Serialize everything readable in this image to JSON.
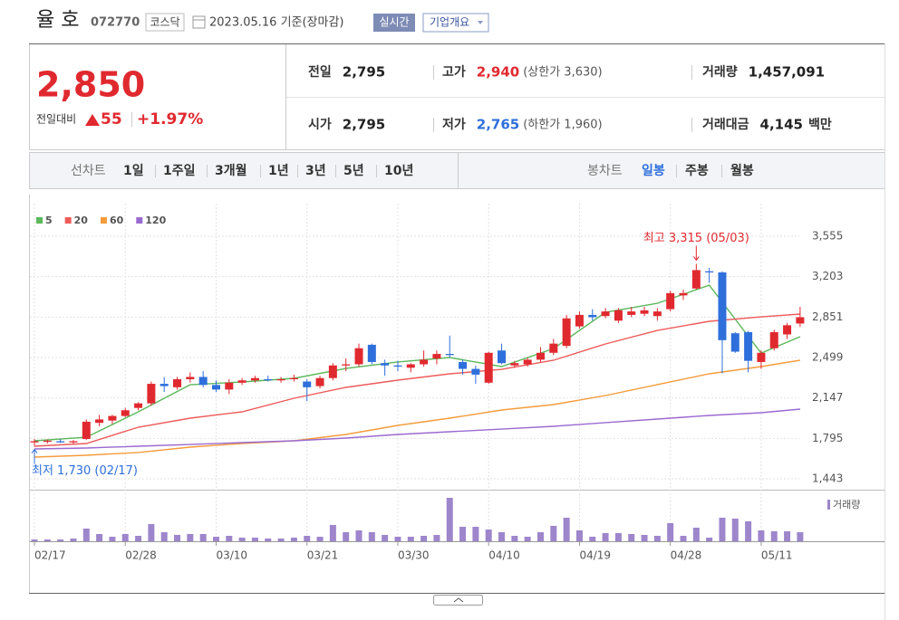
{
  "header": {
    "name": "율 호",
    "code": "072770",
    "market": "코스닥",
    "date": "2023.05.16 기준(장마감)",
    "realtime": "실시간",
    "company": "기업개요"
  },
  "quote": {
    "price": "2,850",
    "change_label": "전일대비",
    "change": "55",
    "change_pct": "+1.97%",
    "rows": [
      [
        {
          "label": "전일",
          "value": "2,795"
        },
        {
          "label": "고가",
          "value": "2,940",
          "note": "(상한가 3,630)"
        },
        {
          "label": "거래량",
          "value": "1,457,091"
        }
      ],
      [
        {
          "label": "시가",
          "value": "2,795"
        },
        {
          "label": "저가",
          "value": "2,765",
          "note": "(하한가 1,960)"
        },
        {
          "label": "거래대금",
          "value": "4,145",
          "unit": "백만"
        }
      ]
    ]
  },
  "tabs": {
    "line_label": "선차트",
    "line": [
      "1일",
      "1주일",
      "3개월",
      "1년",
      "3년",
      "5년",
      "10년"
    ],
    "candle_label": "봉차트",
    "candle": [
      "일봉",
      "주봉",
      "월봉"
    ],
    "active_candle": 0
  },
  "chart_data": {
    "type": "candlestick",
    "categories": [
      "02/17",
      null,
      null,
      null,
      null,
      null,
      null,
      "02/28",
      null,
      null,
      null,
      null,
      null,
      null,
      "03/10",
      null,
      null,
      null,
      null,
      null,
      null,
      "03/21",
      null,
      null,
      null,
      null,
      null,
      null,
      "03/30",
      null,
      null,
      null,
      null,
      null,
      null,
      "04/10",
      null,
      null,
      null,
      null,
      null,
      null,
      "04/19",
      null,
      null,
      null,
      null,
      null,
      null,
      "04/28",
      null,
      null,
      null,
      null,
      null,
      null,
      "05/11",
      null,
      null,
      null
    ],
    "candles": [
      [
        1760,
        1790,
        1730,
        1770
      ],
      [
        1765,
        1785,
        1750,
        1775
      ],
      [
        1770,
        1790,
        1755,
        1760
      ],
      [
        1760,
        1780,
        1750,
        1770
      ],
      [
        1790,
        1960,
        1780,
        1940
      ],
      [
        1930,
        2000,
        1900,
        1960
      ],
      [
        1950,
        2000,
        1920,
        1990
      ],
      [
        1990,
        2060,
        1980,
        2040
      ],
      [
        2060,
        2110,
        2040,
        2100
      ],
      [
        2100,
        2290,
        2080,
        2270
      ],
      [
        2270,
        2330,
        2200,
        2250
      ],
      [
        2240,
        2330,
        2220,
        2310
      ],
      [
        2310,
        2370,
        2280,
        2330
      ],
      [
        2330,
        2380,
        2240,
        2260
      ],
      [
        2260,
        2300,
        2200,
        2220
      ],
      [
        2220,
        2310,
        2180,
        2280
      ],
      [
        2280,
        2320,
        2260,
        2300
      ],
      [
        2300,
        2340,
        2280,
        2320
      ],
      [
        2310,
        2340,
        2290,
        2300
      ],
      [
        2300,
        2330,
        2280,
        2310
      ],
      [
        2310,
        2350,
        2290,
        2320
      ],
      [
        2290,
        2310,
        2120,
        2240
      ],
      [
        2250,
        2340,
        2230,
        2320
      ],
      [
        2320,
        2450,
        2300,
        2430
      ],
      [
        2430,
        2490,
        2380,
        2440
      ],
      [
        2440,
        2620,
        2420,
        2580
      ],
      [
        2610,
        2620,
        2440,
        2460
      ],
      [
        2450,
        2480,
        2340,
        2430
      ],
      [
        2430,
        2470,
        2380,
        2420
      ],
      [
        2410,
        2450,
        2370,
        2440
      ],
      [
        2440,
        2560,
        2420,
        2480
      ],
      [
        2490,
        2560,
        2440,
        2530
      ],
      [
        2530,
        2690,
        2500,
        2520
      ],
      [
        2460,
        2480,
        2350,
        2400
      ],
      [
        2400,
        2430,
        2270,
        2350
      ],
      [
        2280,
        2550,
        2270,
        2540
      ],
      [
        2560,
        2620,
        2440,
        2450
      ],
      [
        2430,
        2470,
        2410,
        2450
      ],
      [
        2440,
        2500,
        2420,
        2480
      ],
      [
        2480,
        2590,
        2460,
        2540
      ],
      [
        2540,
        2660,
        2520,
        2620
      ],
      [
        2600,
        2870,
        2580,
        2840
      ],
      [
        2770,
        2900,
        2750,
        2870
      ],
      [
        2870,
        2920,
        2820,
        2850
      ],
      [
        2860,
        2930,
        2840,
        2900
      ],
      [
        2820,
        2930,
        2800,
        2910
      ],
      [
        2870,
        2940,
        2850,
        2900
      ],
      [
        2880,
        2940,
        2860,
        2910
      ],
      [
        2860,
        2930,
        2820,
        2900
      ],
      [
        2920,
        3080,
        2900,
        3060
      ],
      [
        3040,
        3090,
        3000,
        3060
      ],
      [
        3100,
        3315,
        3090,
        3260
      ],
      [
        3250,
        3280,
        3150,
        3240
      ],
      [
        3240,
        3250,
        2360,
        2650
      ],
      [
        2710,
        2720,
        2540,
        2550
      ],
      [
        2720,
        2730,
        2370,
        2470
      ],
      [
        2460,
        2560,
        2400,
        2540
      ],
      [
        2580,
        2740,
        2560,
        2720
      ],
      [
        2700,
        2800,
        2660,
        2780
      ],
      [
        2795,
        2940,
        2765,
        2850
      ]
    ],
    "up_color": "#e0292f",
    "down_color": "#2f6fdc",
    "ylim": [
      1443,
      3555
    ],
    "yticks": [
      {
        "value": 1443,
        "label": "1,443"
      },
      {
        "value": 1795,
        "label": "1,795"
      },
      {
        "value": 2147,
        "label": "2,147"
      },
      {
        "value": 2499,
        "label": "2,499"
      },
      {
        "value": 2851,
        "label": "2,851"
      },
      {
        "value": 3203,
        "label": "3,203"
      },
      {
        "value": 3555,
        "label": "3,555"
      }
    ],
    "grid": true,
    "ma_x": [
      0,
      4,
      8,
      12,
      16,
      20,
      24,
      28,
      32,
      36,
      40,
      44,
      48,
      52,
      56,
      59
    ],
    "ma_series": [
      {
        "name": "5",
        "color": "#5cb85c",
        "values": [
          1774,
          1805,
          2026,
          2262,
          2286,
          2318,
          2404,
          2460,
          2499,
          2420,
          2577,
          2893,
          2971,
          3129,
          2538,
          2680
        ]
      },
      {
        "name": "20",
        "color": "#ee5b5b",
        "values": [
          1727,
          1750,
          1892,
          1971,
          2026,
          2144,
          2239,
          2302,
          2357,
          2396,
          2475,
          2617,
          2735,
          2814,
          2853,
          2877
        ]
      },
      {
        "name": "60",
        "color": "#f59c3c",
        "values": [
          1632,
          1648,
          1672,
          1719,
          1750,
          1774,
          1829,
          1908,
          1971,
          2042,
          2089,
          2168,
          2263,
          2357,
          2420,
          2475
        ]
      },
      {
        "name": "120",
        "color": "#9b6ad0",
        "values": [
          1703,
          1711,
          1727,
          1742,
          1758,
          1774,
          1798,
          1829,
          1853,
          1876,
          1900,
          1932,
          1963,
          1995,
          2018,
          2050
        ]
      }
    ],
    "volume": {
      "name": "거래량",
      "color": "#9d86cc",
      "values": [
        292000,
        292000,
        292000,
        438000,
        2044000,
        1168000,
        730000,
        1168000,
        876000,
        2774000,
        1460000,
        1022000,
        1168000,
        1168000,
        730000,
        876000,
        584000,
        584000,
        438000,
        438000,
        584000,
        876000,
        730000,
        2628000,
        1460000,
        1752000,
        1460000,
        1022000,
        730000,
        730000,
        876000,
        1022000,
        7008000,
        2336000,
        2336000,
        1898000,
        1460000,
        876000,
        730000,
        1460000,
        2482000,
        3796000,
        1752000,
        730000,
        1314000,
        1314000,
        1168000,
        1022000,
        876000,
        2920000,
        876000,
        2190000,
        584000,
        3796000,
        3650000,
        3212000,
        1752000,
        1606000,
        1606000,
        1457091
      ]
    },
    "annotations": [
      {
        "text": "최고 3,315 (05/03)",
        "index": 51,
        "value": 3315,
        "color": "#e0292f"
      },
      {
        "text": "최저 1,730 (02/17)",
        "index": 0,
        "value": 1730,
        "color": "#2f6fdc"
      }
    ]
  }
}
